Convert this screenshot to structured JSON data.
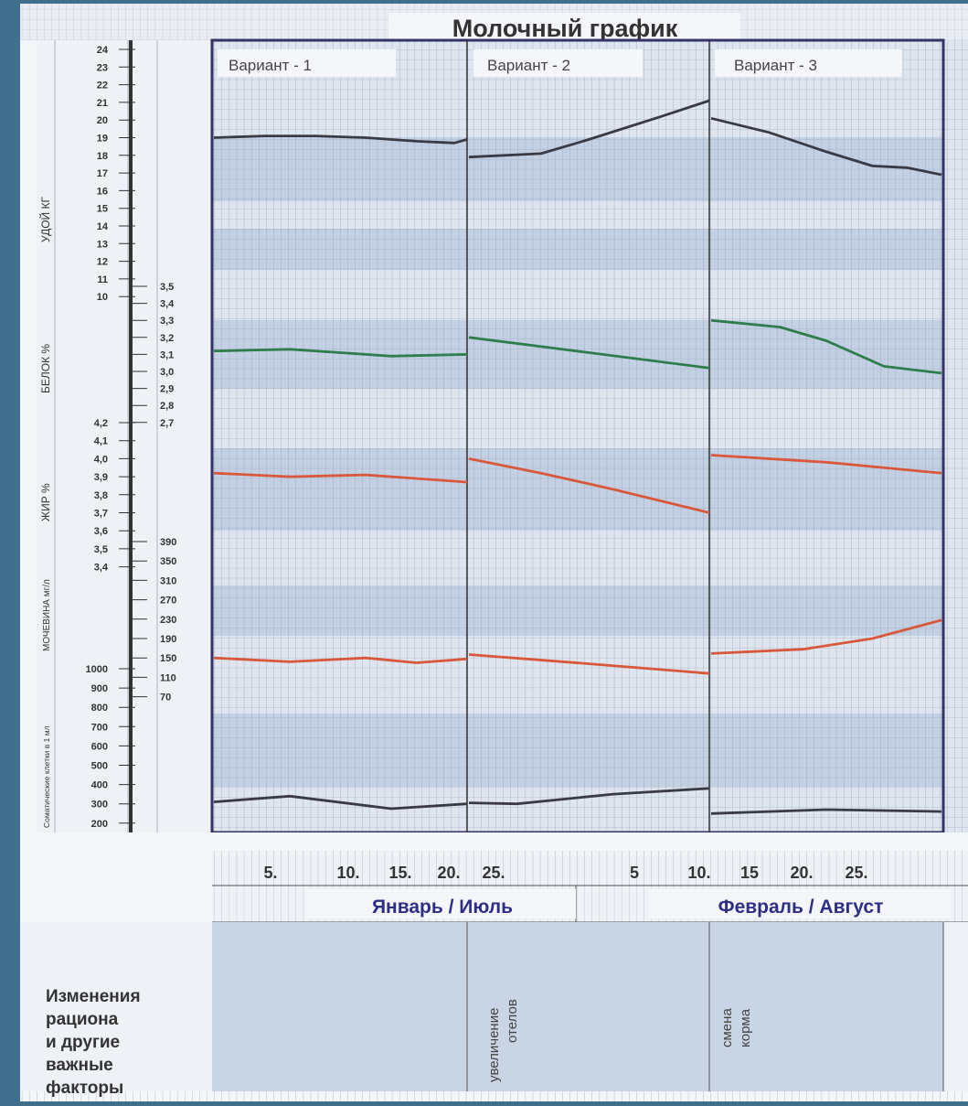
{
  "chart_data": {
    "type": "line",
    "title": "Молочный график",
    "panels": [
      "Вариант - 1",
      "Вариант - 2",
      "Вариант - 3"
    ],
    "x_ticks": [
      "5.",
      "10.",
      "15.",
      "20.",
      "25.",
      "5",
      "10.",
      "15",
      "20.",
      "25."
    ],
    "months": [
      "Январь / Июль",
      "Февраль / Август"
    ],
    "axes": {
      "yield": {
        "label": "УДОЙ  КГ",
        "ticks": [
          "24",
          "23",
          "22",
          "21",
          "20",
          "19",
          "18",
          "17",
          "16",
          "15",
          "14",
          "13",
          "12",
          "11",
          "10"
        ]
      },
      "protein": {
        "label": "БЕЛОК  %",
        "ticks": [
          "3,5",
          "3,4",
          "3,3",
          "3,2",
          "3,1",
          "3,0",
          "2,9",
          "2,8",
          "2,7"
        ]
      },
      "fat": {
        "label": "ЖИР %",
        "ticks": [
          "4,2",
          "4,1",
          "4,0",
          "3,9",
          "3,8",
          "3,7",
          "3,6",
          "3,5",
          "3,4"
        ]
      },
      "urea": {
        "label": "МОЧЕВИНА  мг/л",
        "ticks": [
          "390",
          "350",
          "310",
          "270",
          "230",
          "190",
          "150",
          "110",
          "70"
        ]
      },
      "somatic": {
        "label": "Соматические клетки в 1 мл",
        "ticks": [
          "1000",
          "900",
          "800",
          "700",
          "600",
          "500",
          "400",
          "300",
          "200"
        ]
      }
    },
    "series": [
      {
        "measure": "yield",
        "color": "#3a3a44",
        "panels": [
          [
            [
              0,
              19.0
            ],
            [
              0.2,
              19.1
            ],
            [
              0.4,
              19.1
            ],
            [
              0.6,
              19.0
            ],
            [
              0.8,
              18.8
            ],
            [
              0.95,
              18.7
            ],
            [
              1,
              18.9
            ]
          ],
          [
            [
              0,
              17.9
            ],
            [
              0.3,
              18.1
            ],
            [
              0.5,
              18.9
            ],
            [
              0.8,
              20.2
            ],
            [
              1,
              21.1
            ]
          ],
          [
            [
              0,
              20.1
            ],
            [
              0.25,
              19.3
            ],
            [
              0.5,
              18.2
            ],
            [
              0.7,
              17.4
            ],
            [
              0.85,
              17.3
            ],
            [
              1,
              16.9
            ]
          ]
        ]
      },
      {
        "measure": "protein",
        "color": "#2e7d4a",
        "panels": [
          [
            [
              0,
              3.12
            ],
            [
              0.3,
              3.13
            ],
            [
              0.5,
              3.11
            ],
            [
              0.7,
              3.09
            ],
            [
              1,
              3.1
            ]
          ],
          [
            [
              0,
              3.2
            ],
            [
              0.5,
              3.11
            ],
            [
              1,
              3.02
            ]
          ],
          [
            [
              0,
              3.3
            ],
            [
              0.3,
              3.26
            ],
            [
              0.5,
              3.18
            ],
            [
              0.75,
              3.03
            ],
            [
              1,
              2.99
            ]
          ]
        ]
      },
      {
        "measure": "fat",
        "color": "#d9573a",
        "panels": [
          [
            [
              0,
              3.92
            ],
            [
              0.3,
              3.9
            ],
            [
              0.6,
              3.91
            ],
            [
              1,
              3.87
            ]
          ],
          [
            [
              0,
              4.0
            ],
            [
              0.3,
              3.92
            ],
            [
              0.6,
              3.83
            ],
            [
              1,
              3.7
            ]
          ],
          [
            [
              0,
              4.02
            ],
            [
              0.5,
              3.98
            ],
            [
              1,
              3.92
            ]
          ]
        ]
      },
      {
        "measure": "urea",
        "color": "#d9573a",
        "panels": [
          [
            [
              0,
              150
            ],
            [
              0.3,
              142
            ],
            [
              0.6,
              150
            ],
            [
              0.8,
              140
            ],
            [
              1,
              148
            ]
          ],
          [
            [
              0,
              157
            ],
            [
              0.5,
              138
            ],
            [
              1,
              118
            ]
          ],
          [
            [
              0,
              159
            ],
            [
              0.4,
              168
            ],
            [
              0.7,
              190
            ],
            [
              1,
              228
            ]
          ]
        ]
      },
      {
        "measure": "somatic",
        "color": "#3a3a44",
        "panels": [
          [
            [
              0,
              310
            ],
            [
              0.3,
              340
            ],
            [
              0.7,
              275
            ],
            [
              1,
              300
            ]
          ],
          [
            [
              0,
              305
            ],
            [
              0.2,
              300
            ],
            [
              0.6,
              350
            ],
            [
              1,
              380
            ]
          ],
          [
            [
              0,
              250
            ],
            [
              0.5,
              270
            ],
            [
              1,
              260
            ]
          ]
        ]
      }
    ]
  },
  "notes": {
    "heading": [
      "Изменения",
      "рациона",
      "и другие",
      "важные",
      "факторы"
    ],
    "panel2": [
      "увеличение",
      "отелов"
    ],
    "panel3": [
      "смена",
      "корма"
    ]
  },
  "colors": {
    "background": "#3f6f8c",
    "paper": "#f4f6f9",
    "band": "#c3d0e4",
    "frame": "#333366",
    "month_text": "#2d2f85"
  }
}
